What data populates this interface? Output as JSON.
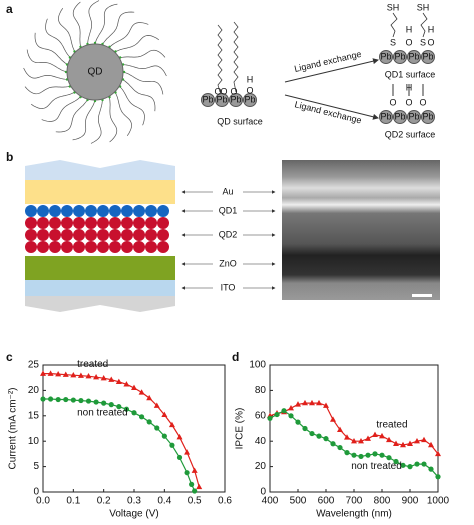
{
  "panel_a": {
    "label": "a",
    "qd": "QD",
    "qd_surface": "QD surface",
    "ligand_exchange_1": "Ligand exchange",
    "ligand_exchange_2": "Ligand exchange",
    "qd1_surface": "QD1 surface",
    "qd2_surface": "QD2 surface",
    "atoms": {
      "pb": "Pb",
      "o": "O",
      "h": "H",
      "s": "S",
      "sh": "SH"
    }
  },
  "panel_b": {
    "label": "b",
    "layers": [
      "Au",
      "QD1",
      "QD2",
      "ZnO",
      "ITO"
    ]
  },
  "chart_data": [
    {
      "type": "line",
      "label": "c",
      "xlabel": "Voltage (V)",
      "ylabel": "Current (mA cm⁻²)",
      "annotations": [
        "treated",
        "non treated"
      ],
      "xlim": [
        0,
        0.6
      ],
      "xticks": [
        {
          "value": 0,
          "label": "0.0"
        },
        0.1,
        0.2,
        0.3,
        0.4,
        0.5,
        0.6
      ],
      "ylim": [
        0,
        25
      ],
      "yticks": [
        0,
        5,
        10,
        15,
        20,
        25
      ],
      "series": [
        {
          "name": "treated",
          "color": "#e0201b",
          "marker": "triangle",
          "x": [
            0,
            0.025,
            0.05,
            0.075,
            0.1,
            0.125,
            0.15,
            0.175,
            0.2,
            0.225,
            0.25,
            0.275,
            0.3,
            0.325,
            0.35,
            0.375,
            0.4,
            0.425,
            0.45,
            0.475,
            0.5,
            0.515
          ],
          "values": [
            23.3,
            23.3,
            23.2,
            23.1,
            23.0,
            22.9,
            22.8,
            22.6,
            22.4,
            22.1,
            21.7,
            21.2,
            20.5,
            19.6,
            18.5,
            17.0,
            15.2,
            13.2,
            10.8,
            7.8,
            4.2,
            1.0
          ]
        },
        {
          "name": "non treated",
          "color": "#1f9a3a",
          "marker": "circle",
          "x": [
            0,
            0.025,
            0.05,
            0.075,
            0.1,
            0.125,
            0.15,
            0.175,
            0.2,
            0.225,
            0.25,
            0.275,
            0.3,
            0.325,
            0.35,
            0.375,
            0.4,
            0.425,
            0.45,
            0.475,
            0.49,
            0.5
          ],
          "values": [
            18.3,
            18.3,
            18.2,
            18.2,
            18.1,
            18.0,
            17.9,
            17.7,
            17.5,
            17.2,
            16.8,
            16.3,
            15.6,
            14.8,
            13.8,
            12.6,
            11.0,
            9.2,
            6.8,
            3.8,
            1.5,
            0.2
          ]
        }
      ]
    },
    {
      "type": "line",
      "label": "d",
      "xlabel": "Wavelength (nm)",
      "ylabel": "IPCE (%)",
      "annotations": [
        "treated",
        "non treated"
      ],
      "xlim": [
        400,
        1000
      ],
      "xticks": [
        400,
        500,
        600,
        700,
        800,
        900,
        1000
      ],
      "ylim": [
        0,
        100
      ],
      "yticks": [
        0,
        20,
        40,
        60,
        80,
        100
      ],
      "series": [
        {
          "name": "treated",
          "color": "#e0201b",
          "marker": "triangle",
          "x": [
            400,
            425,
            450,
            475,
            500,
            525,
            550,
            575,
            600,
            625,
            650,
            675,
            700,
            725,
            750,
            775,
            800,
            825,
            850,
            875,
            900,
            925,
            950,
            975,
            1000
          ],
          "values": [
            60,
            62,
            63,
            66,
            69,
            70,
            70,
            70,
            68,
            57,
            49,
            43,
            40,
            40,
            42,
            45,
            44,
            41,
            38,
            37,
            38,
            40,
            41,
            37,
            30
          ]
        },
        {
          "name": "non treated",
          "color": "#1f9a3a",
          "marker": "circle",
          "x": [
            400,
            425,
            450,
            475,
            500,
            525,
            550,
            575,
            600,
            625,
            650,
            675,
            700,
            725,
            750,
            775,
            800,
            825,
            850,
            875,
            900,
            925,
            950,
            975,
            1000
          ],
          "values": [
            58,
            61,
            64,
            60,
            55,
            50,
            46,
            44,
            42,
            38,
            35,
            31,
            29,
            28,
            29,
            30,
            29,
            27,
            24,
            21,
            20,
            22,
            22,
            18,
            12
          ]
        }
      ]
    }
  ]
}
